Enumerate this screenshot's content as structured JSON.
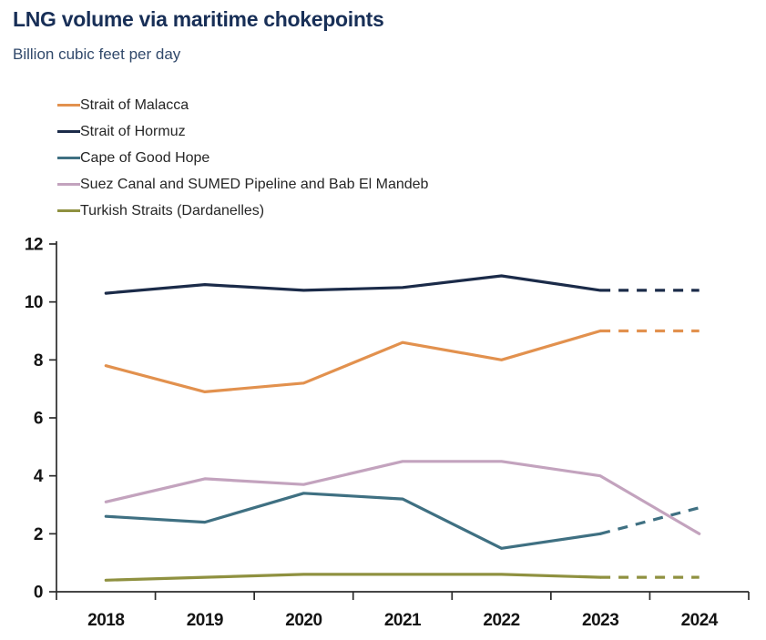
{
  "header": {
    "title": "LNG volume via maritime chokepoints",
    "subtitle": "Billion cubic feet per day"
  },
  "chart_data": {
    "type": "line",
    "title": "LNG volume via maritime chokepoints",
    "subtitle_unit_label": "Billion cubic feet per day",
    "x": [
      "2018",
      "2019",
      "2020",
      "2021",
      "2022",
      "2023",
      "2024"
    ],
    "ylim": [
      0,
      12
    ],
    "yticks": [
      "0",
      "2",
      "4",
      "6",
      "8",
      "10",
      "12"
    ],
    "grid": false,
    "legend_position": "top-left",
    "axis_color": "#2B2B2B",
    "tick_label_color": "#141414",
    "series": [
      {
        "name": "Strait of Malacca",
        "color": "#E2914E",
        "values": [
          7.8,
          6.9,
          7.2,
          8.6,
          8.0,
          9.0,
          9.0
        ],
        "dashed_from_index": 5
      },
      {
        "name": "Strait of Hormuz",
        "color": "#1B2B49",
        "values": [
          10.3,
          10.6,
          10.4,
          10.5,
          10.9,
          10.4,
          10.4
        ],
        "dashed_from_index": 5
      },
      {
        "name": "Cape of Good Hope",
        "color": "#3F7082",
        "values": [
          2.6,
          2.4,
          3.4,
          3.2,
          1.5,
          2.0,
          2.9
        ],
        "dashed_from_index": 5
      },
      {
        "name": "Suez Canal and SUMED Pipeline and Bab El Mandeb",
        "color": "#C3A3BE",
        "values": [
          3.1,
          3.9,
          3.7,
          4.5,
          4.5,
          4.0,
          2.0
        ],
        "dashed_from_index": null
      },
      {
        "name": "Turkish Straits (Dardanelles)",
        "color": "#8F9140",
        "values": [
          0.4,
          0.5,
          0.6,
          0.6,
          0.6,
          0.5,
          0.5
        ],
        "dashed_from_index": 5
      }
    ]
  }
}
